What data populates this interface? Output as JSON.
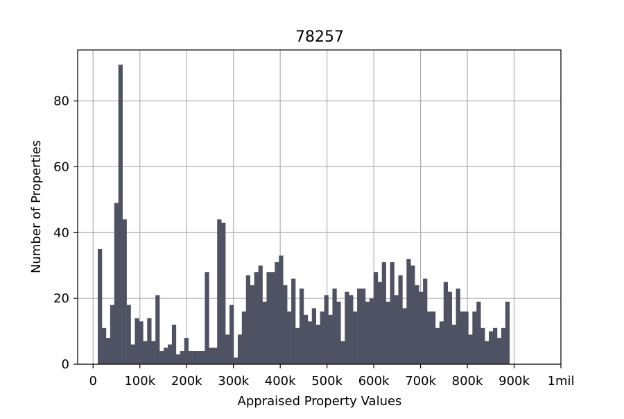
{
  "chart_data": {
    "type": "bar",
    "title": "78257",
    "xlabel": "Appraised Property Values",
    "ylabel": "Number of Properties",
    "x_ticks": [
      "0",
      "100k",
      "200k",
      "300k",
      "400k",
      "500k",
      "600k",
      "700k",
      "800k",
      "900k",
      "1mil"
    ],
    "x_tick_values": [
      0,
      100000,
      200000,
      300000,
      400000,
      500000,
      600000,
      700000,
      800000,
      900000,
      1000000
    ],
    "y_ticks": [
      "0",
      "20",
      "40",
      "60",
      "80"
    ],
    "y_tick_values": [
      0,
      20,
      40,
      60,
      80
    ],
    "xlim": [
      -33000,
      1000000
    ],
    "ylim": [
      0,
      95.5
    ],
    "grid": true,
    "bar_color": "#4f5262",
    "bin_start": 10000,
    "bin_width": 8800,
    "values": [
      35,
      11,
      8,
      18,
      49,
      91,
      44,
      18,
      6,
      14,
      13,
      7,
      14,
      7,
      21,
      4,
      5,
      6,
      12,
      3,
      4,
      8,
      4,
      4,
      4,
      4,
      28,
      5,
      5,
      44,
      43,
      9,
      18,
      2,
      9,
      16,
      27,
      24,
      28,
      30,
      19,
      28,
      28,
      31,
      33,
      24,
      16,
      26,
      11,
      23,
      15,
      13,
      17,
      12,
      16,
      21,
      15,
      23,
      19,
      7,
      22,
      21,
      16,
      23,
      23,
      19,
      20,
      28,
      25,
      31,
      19,
      31,
      21,
      27,
      17,
      32,
      30,
      24,
      22,
      26,
      16,
      16,
      11,
      13,
      25,
      22,
      12,
      23,
      16,
      16,
      9,
      16,
      19,
      11,
      7,
      10,
      11,
      8,
      11,
      19
    ]
  }
}
